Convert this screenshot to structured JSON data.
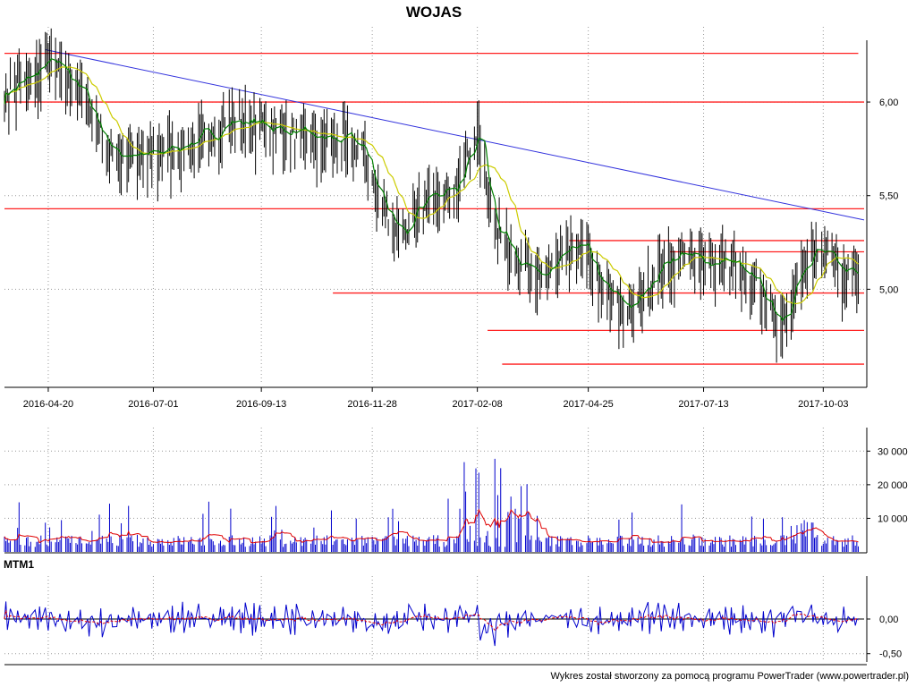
{
  "title": "WOJAS",
  "mtm_label": "MTM1",
  "footer": "Wykres został stworzony za pomocą programu PowerTrader (www.powertrader.pl)",
  "colors": {
    "price_bar": "#000000",
    "ma_short": "#008000",
    "ma_long": "#cccc00",
    "support": "#ff2020",
    "trend": "#3333dd",
    "volume": "#0000cc",
    "volume_ma": "#e00000",
    "mtm": "#0000cc",
    "mtm_signal": "#e00000",
    "grid": "#999999"
  },
  "chart_data": [
    {
      "type": "ohlc",
      "name": "price",
      "date_range": [
        "2016-03-21",
        "2017-10-27"
      ],
      "x_tick_labels": [
        "2016-04-20",
        "2016-07-01",
        "2016-09-13",
        "2016-11-28",
        "2017-02-08",
        "2017-04-25",
        "2017-07-13",
        "2017-10-03"
      ],
      "y_tick_labels": [
        "5,00",
        "5,50",
        "6,00"
      ],
      "y_ticks": [
        5.0,
        5.5,
        6.0
      ],
      "ylim": [
        4.5,
        6.33
      ],
      "anchors": [
        [
          "2016-03-21",
          6.05
        ],
        [
          "2016-04-05",
          6.12
        ],
        [
          "2016-04-20",
          6.22
        ],
        [
          "2016-05-10",
          6.1
        ],
        [
          "2016-06-01",
          5.75
        ],
        [
          "2016-06-20",
          5.7
        ],
        [
          "2016-07-10",
          5.75
        ],
        [
          "2016-08-01",
          5.8
        ],
        [
          "2016-08-25",
          5.9
        ],
        [
          "2016-09-15",
          5.88
        ],
        [
          "2016-10-10",
          5.82
        ],
        [
          "2016-11-01",
          5.8
        ],
        [
          "2016-11-20",
          5.78
        ],
        [
          "2016-12-05",
          5.45
        ],
        [
          "2016-12-20",
          5.3
        ],
        [
          "2017-01-10",
          5.55
        ],
        [
          "2017-01-25",
          5.55
        ],
        [
          "2017-02-08",
          5.85
        ],
        [
          "2017-02-20",
          5.35
        ],
        [
          "2017-03-10",
          5.15
        ],
        [
          "2017-03-20",
          5.05
        ],
        [
          "2017-04-01",
          5.12
        ],
        [
          "2017-04-20",
          5.25
        ],
        [
          "2017-05-05",
          5.0
        ],
        [
          "2017-05-25",
          4.9
        ],
        [
          "2017-06-10",
          5.1
        ],
        [
          "2017-06-25",
          5.2
        ],
        [
          "2017-07-10",
          5.15
        ],
        [
          "2017-08-01",
          5.15
        ],
        [
          "2017-08-20",
          5.0
        ],
        [
          "2017-09-05",
          4.8
        ],
        [
          "2017-09-15",
          5.1
        ],
        [
          "2017-09-25",
          5.2
        ],
        [
          "2017-10-05",
          5.18
        ],
        [
          "2017-10-15",
          5.1
        ],
        [
          "2017-10-27",
          5.12
        ]
      ],
      "horizontal_lines": [
        {
          "value": 6.26,
          "from": "2016-03-21",
          "to": "2017-10-27"
        },
        {
          "value": 6.0,
          "from": "2016-03-21",
          "to": "2017-10-31"
        },
        {
          "value": 5.43,
          "from": "2016-03-21",
          "to": "2017-10-31"
        },
        {
          "value": 5.26,
          "from": "2017-04-12",
          "to": "2017-10-31"
        },
        {
          "value": 5.2,
          "from": "2017-06-20",
          "to": "2017-10-31"
        },
        {
          "value": 4.98,
          "from": "2016-11-01",
          "to": "2017-10-31"
        },
        {
          "value": 4.78,
          "from": "2017-02-15",
          "to": "2017-10-31"
        },
        {
          "value": 4.6,
          "from": "2017-02-25",
          "to": "2017-10-31"
        }
      ],
      "trend_line": [
        [
          "2016-04-18",
          6.28
        ],
        [
          "2017-10-31",
          5.37
        ]
      ]
    },
    {
      "type": "bar",
      "name": "volume",
      "y_tick_labels": [
        "10 000",
        "20 000",
        "30 000"
      ],
      "y_ticks": [
        10000,
        20000,
        30000
      ],
      "ylim": [
        0,
        37000
      ]
    },
    {
      "type": "line",
      "name": "MTM1",
      "y_tick_labels": [
        "0,00",
        "-0,50"
      ],
      "y_ticks": [
        0.0,
        -0.5
      ],
      "ylim": [
        -0.62,
        0.62
      ]
    }
  ]
}
